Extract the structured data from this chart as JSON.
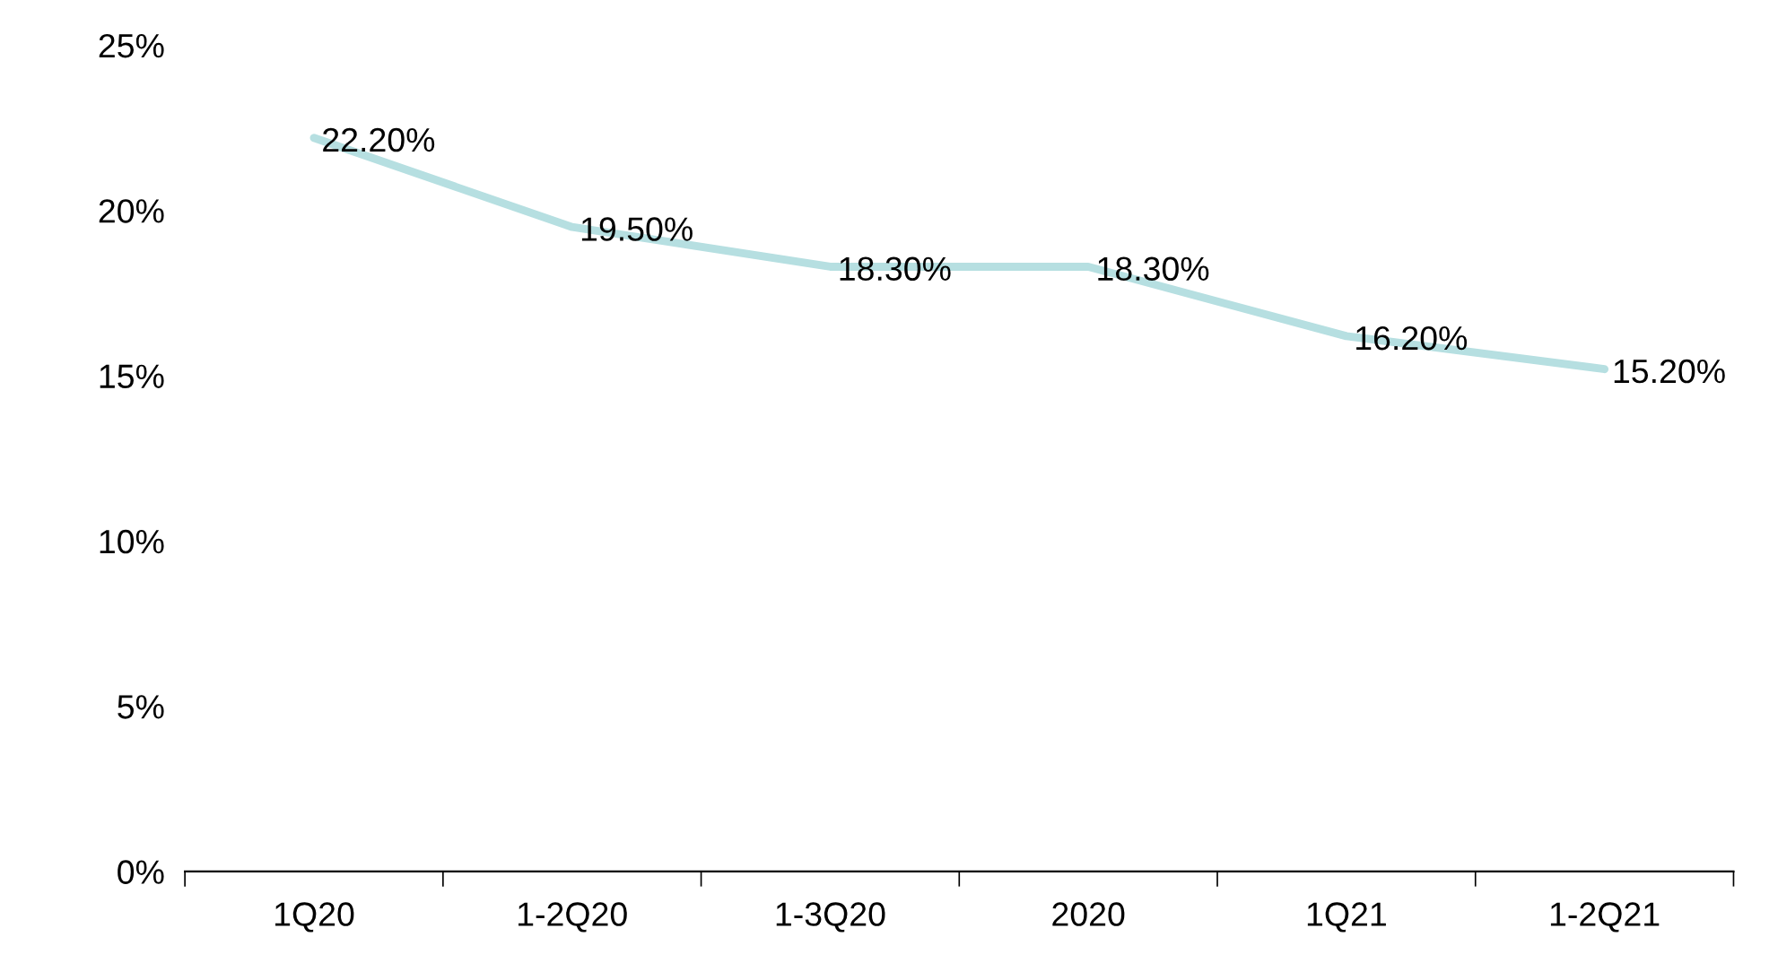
{
  "chart_data": {
    "type": "line",
    "categories": [
      "1Q20",
      "1-2Q20",
      "1-3Q20",
      "2020",
      "1Q21",
      "1-2Q21"
    ],
    "series": [
      {
        "color": "#b6dfe1",
        "values": [
          22.2,
          19.5,
          18.3,
          18.3,
          16.2,
          15.2
        ],
        "value_labels": [
          "22.20%",
          "19.50%",
          "18.30%",
          "18.30%",
          "16.20%",
          "15.20%"
        ]
      }
    ],
    "ylim": [
      0,
      25
    ],
    "yticks": [
      {
        "value": 0,
        "label": "0%"
      },
      {
        "value": 5,
        "label": "5%"
      },
      {
        "value": 10,
        "label": "10%"
      },
      {
        "value": 15,
        "label": "15%"
      },
      {
        "value": 20,
        "label": "20%"
      },
      {
        "value": 25,
        "label": "25%"
      }
    ],
    "marker": "none",
    "line_style": "solid"
  }
}
